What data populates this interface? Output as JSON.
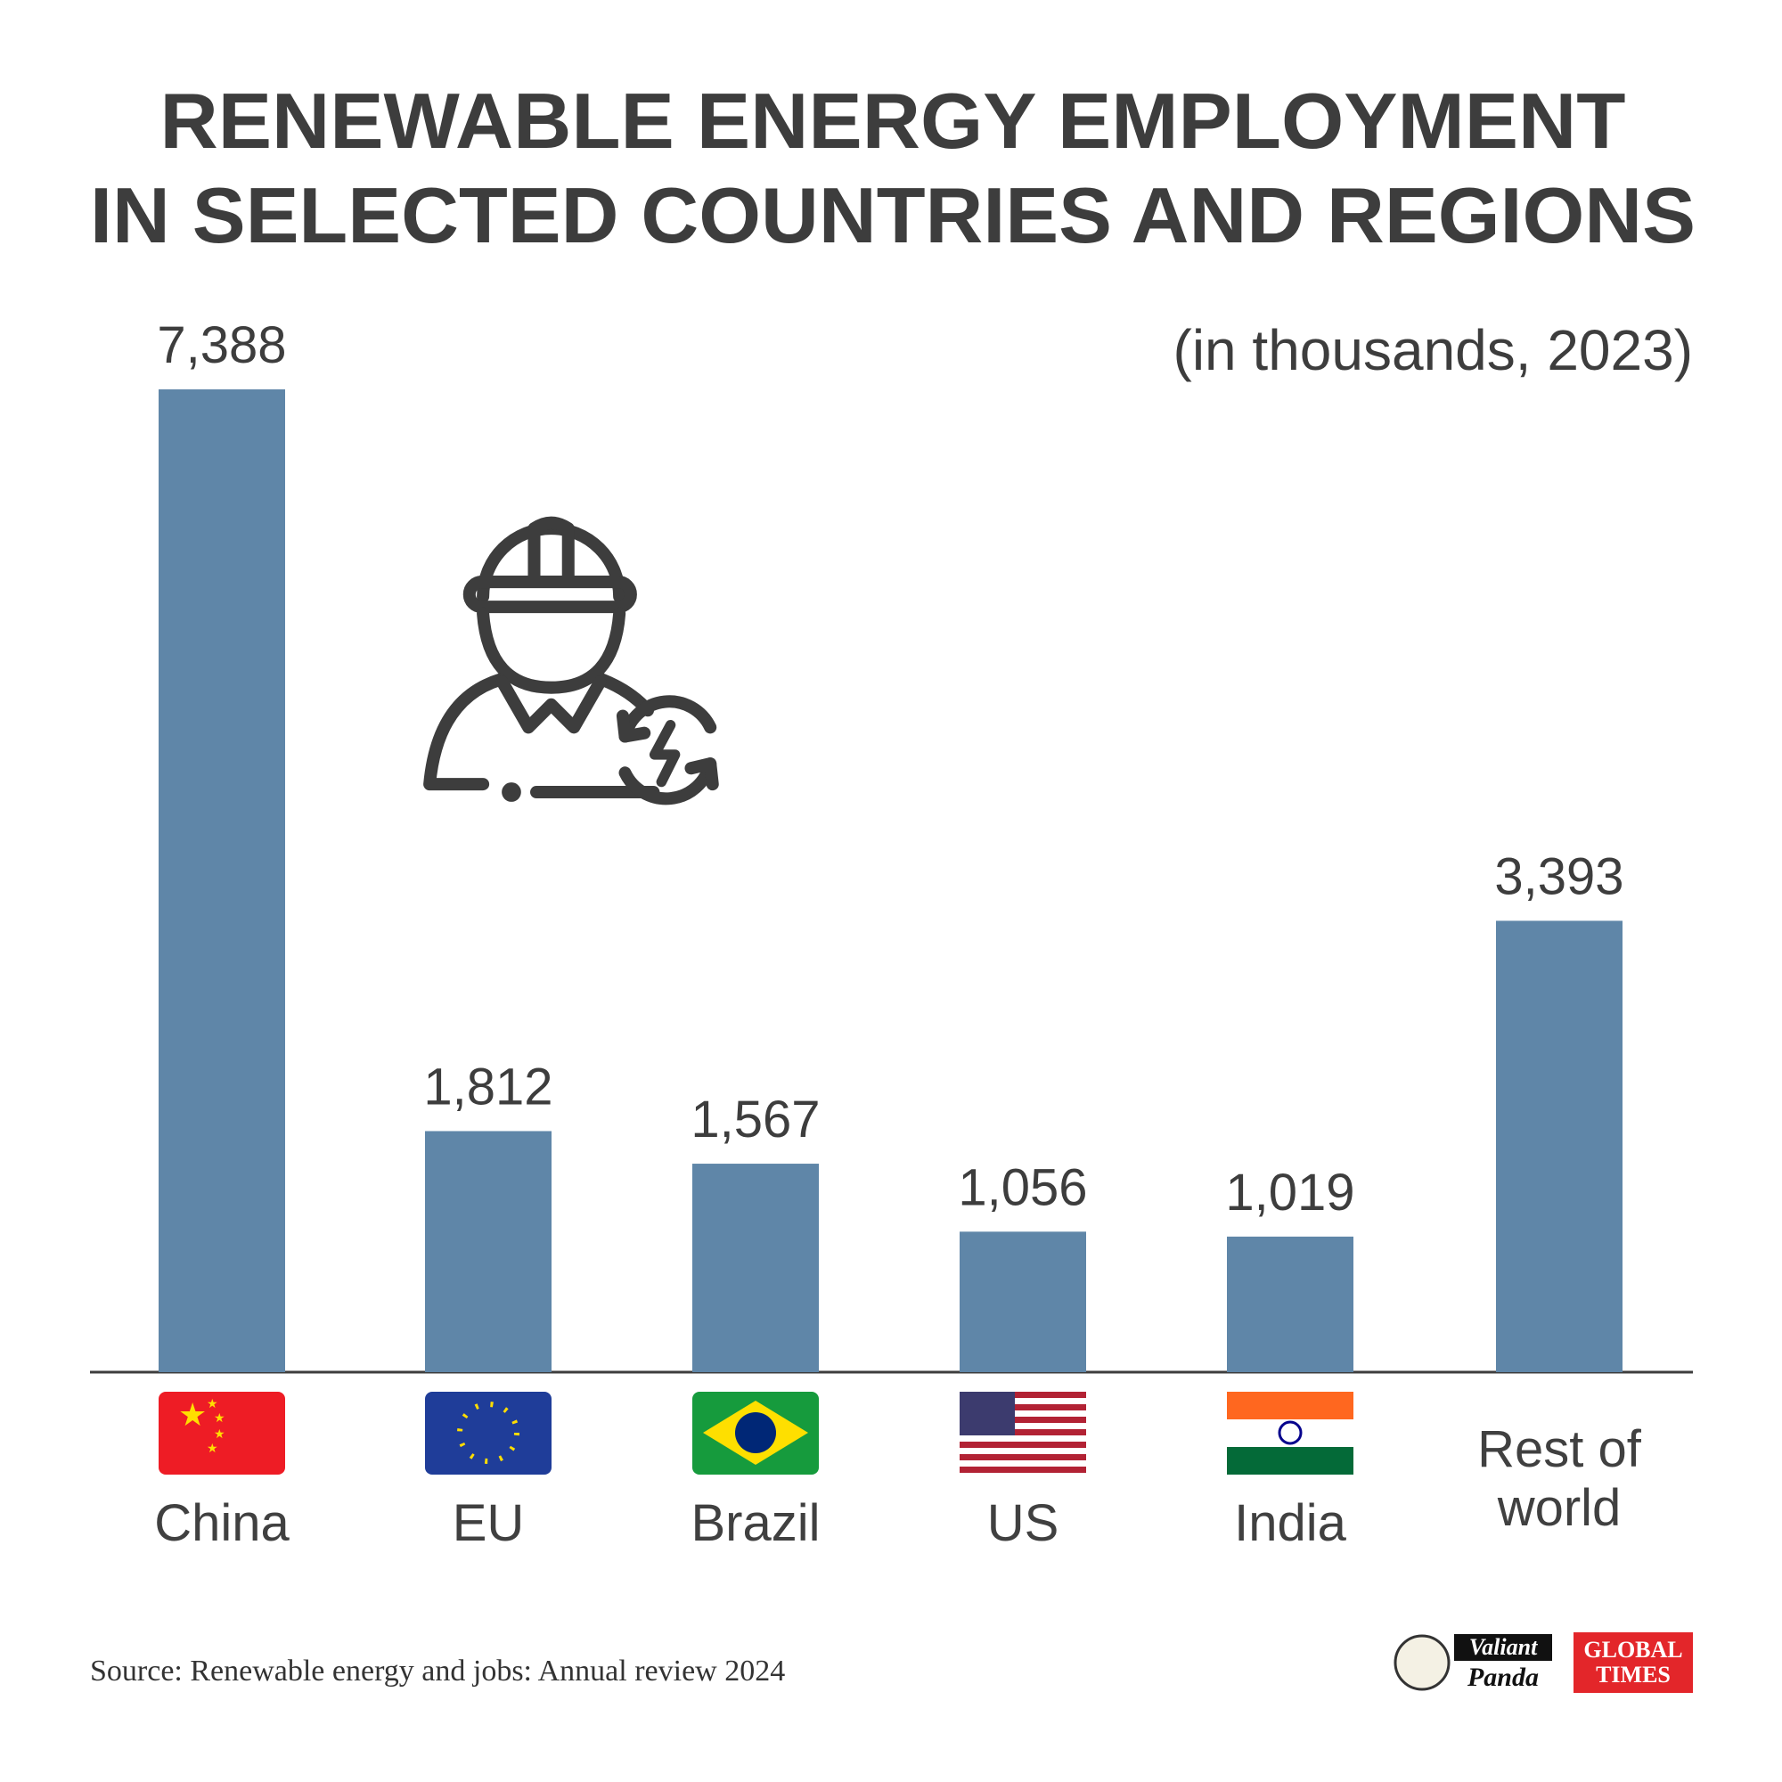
{
  "chart_data": {
    "type": "bar",
    "title": [
      "RENEWABLE ENERGY EMPLOYMENT",
      "IN SELECTED COUNTRIES AND REGIONS"
    ],
    "subtitle": "(in thousands, 2023)",
    "categories": [
      "China",
      "EU",
      "Brazil",
      "US",
      "India",
      "Rest of world"
    ],
    "values": [
      7388,
      1812,
      1567,
      1056,
      1019,
      3393
    ],
    "value_labels": [
      "7,388",
      "1,812",
      "1,567",
      "1,056",
      "1,019",
      "3,393"
    ],
    "color": "#5f86a8",
    "source": "Source: Renewable energy and jobs: Annual review 2024",
    "logos": [
      "Valiant",
      "Panda",
      "GLOBAL",
      "TIMES"
    ]
  }
}
